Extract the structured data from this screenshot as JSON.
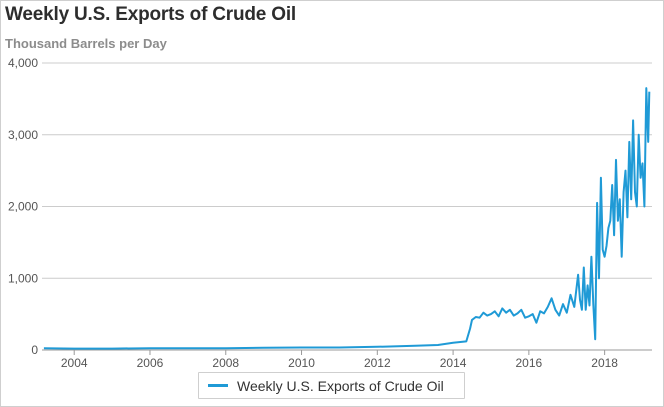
{
  "title": "Weekly U.S. Exports of Crude Oil",
  "subtitle": "Thousand Barrels per Day",
  "colors": {
    "line": "#1f9ad6",
    "grid": "#cccccc",
    "axis_text": "#555555"
  },
  "chart_data": {
    "type": "line",
    "title": "Weekly U.S. Exports of Crude Oil",
    "subtitle": "Thousand Barrels per Day",
    "xlabel": "",
    "ylabel": "",
    "xlim": [
      2003.15,
      2019.25
    ],
    "ylim": [
      0,
      4000
    ],
    "y_ticks": [
      0,
      1000,
      2000,
      3000,
      4000
    ],
    "y_tick_labels": [
      "0",
      "1,000",
      "2,000",
      "3,000",
      "4,000"
    ],
    "x_ticks": [
      2004,
      2006,
      2008,
      2010,
      2012,
      2014,
      2016,
      2018
    ],
    "x_tick_labels": [
      "2004",
      "2006",
      "2008",
      "2010",
      "2012",
      "2014",
      "2016",
      "2018"
    ],
    "grid": true,
    "legend_position": "bottom-center",
    "series": [
      {
        "name": "Weekly U.S. Exports of Crude Oil",
        "color": "#1f9ad6",
        "x": [
          2003.2,
          2004.0,
          2005.0,
          2006.0,
          2007.0,
          2008.0,
          2009.0,
          2010.0,
          2011.0,
          2012.0,
          2013.0,
          2013.6,
          2014.0,
          2014.35,
          2014.45,
          2014.5,
          2014.6,
          2014.7,
          2014.8,
          2014.9,
          2015.0,
          2015.1,
          2015.2,
          2015.3,
          2015.4,
          2015.5,
          2015.6,
          2015.7,
          2015.8,
          2015.9,
          2016.0,
          2016.1,
          2016.2,
          2016.3,
          2016.4,
          2016.5,
          2016.6,
          2016.7,
          2016.8,
          2016.9,
          2017.0,
          2017.1,
          2017.2,
          2017.3,
          2017.35,
          2017.4,
          2017.45,
          2017.5,
          2017.55,
          2017.6,
          2017.65,
          2017.7,
          2017.75,
          2017.8,
          2017.85,
          2017.9,
          2017.95,
          2018.0,
          2018.05,
          2018.1,
          2018.15,
          2018.2,
          2018.25,
          2018.3,
          2018.35,
          2018.4,
          2018.45,
          2018.5,
          2018.55,
          2018.6,
          2018.65,
          2018.7,
          2018.75,
          2018.8,
          2018.85,
          2018.9,
          2018.95,
          2019.0,
          2019.05,
          2019.1,
          2019.15,
          2019.18
        ],
        "values": [
          25,
          20,
          20,
          25,
          25,
          25,
          30,
          35,
          35,
          45,
          60,
          70,
          100,
          120,
          300,
          420,
          460,
          450,
          520,
          480,
          500,
          540,
          470,
          580,
          520,
          560,
          480,
          510,
          560,
          450,
          470,
          500,
          380,
          540,
          510,
          600,
          720,
          560,
          480,
          640,
          520,
          770,
          600,
          1050,
          700,
          560,
          1150,
          560,
          900,
          620,
          1300,
          640,
          150,
          2050,
          1000,
          2400,
          1400,
          1300,
          1450,
          1700,
          1800,
          2300,
          1600,
          2650,
          1800,
          2100,
          1300,
          2200,
          2500,
          1850,
          2900,
          2100,
          3200,
          2200,
          2000,
          3000,
          2400,
          2600,
          2000,
          3650,
          2900,
          3600
        ]
      }
    ]
  },
  "legend": {
    "label": "Weekly U.S. Exports of Crude Oil"
  }
}
